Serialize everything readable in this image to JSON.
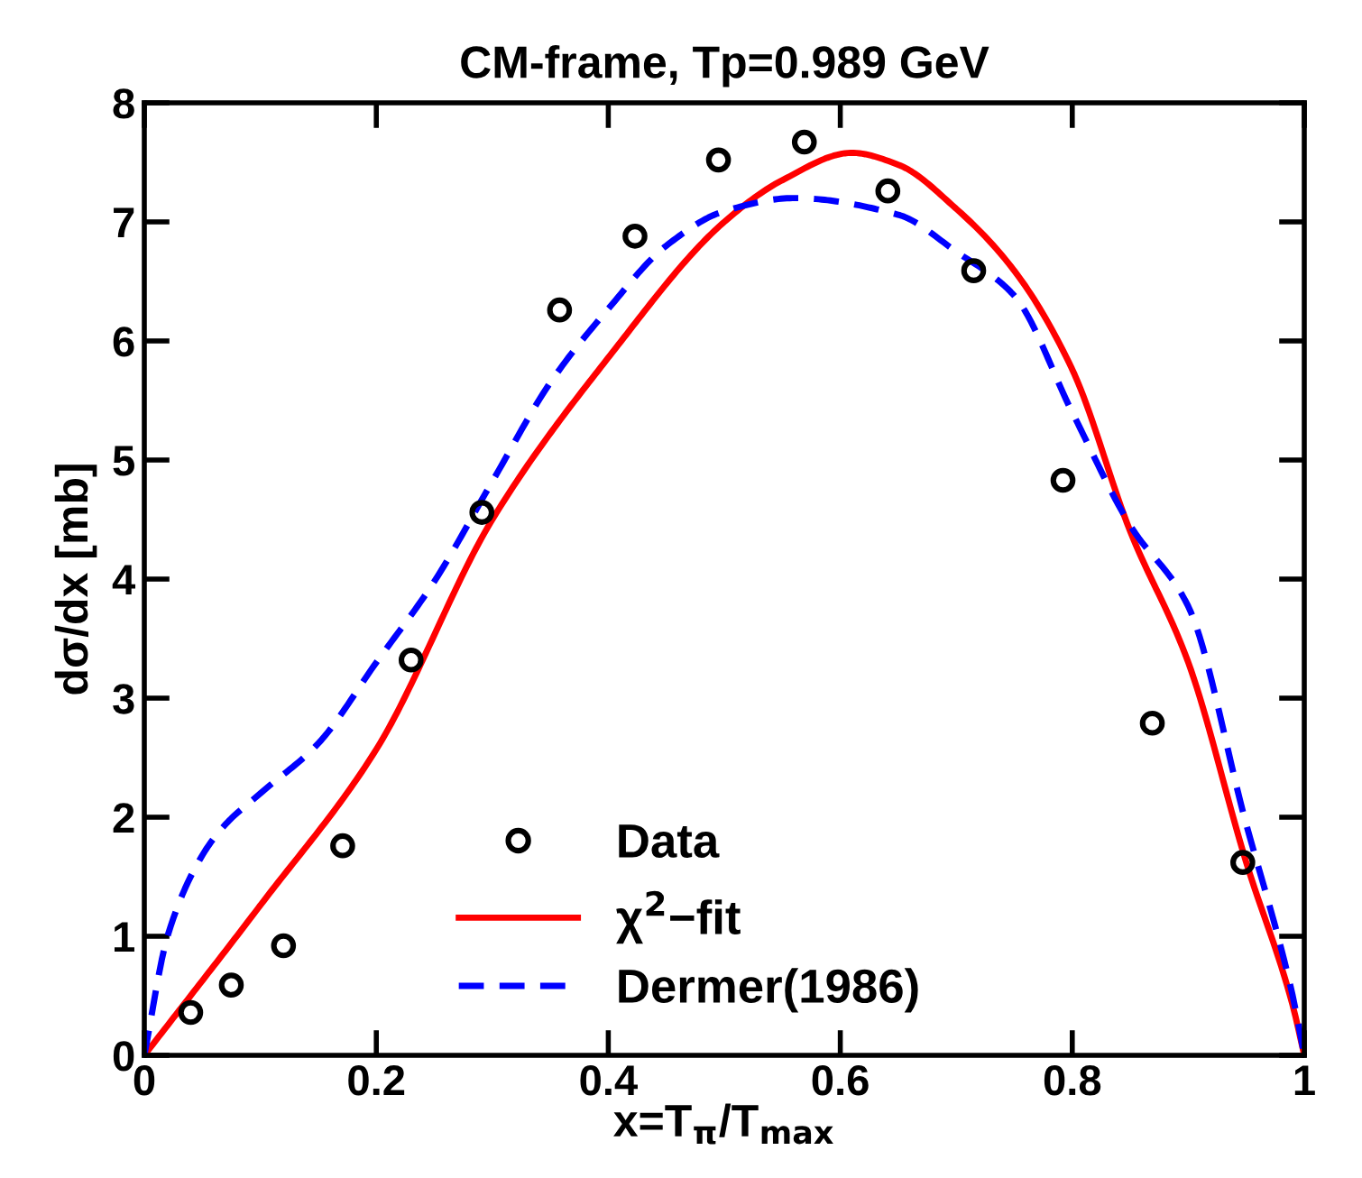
{
  "chart_data": {
    "type": "line",
    "title": "CM-frame, Tp=0.989 GeV",
    "xlabel": "x=T$_{π}$/T$_{max}$",
    "ylabel": "dσ/dx [mb]",
    "xlim": [
      0,
      1
    ],
    "xticks": [
      0,
      0.2,
      0.4,
      0.6,
      0.8,
      1
    ],
    "ylim": [
      0,
      8
    ],
    "yticks": [
      0,
      1,
      2,
      3,
      4,
      5,
      6,
      7,
      8
    ],
    "grid": false,
    "legend": "bottom",
    "series": [
      {
        "name": "Data",
        "type": "scatter",
        "marker": "circle",
        "color": "#000000",
        "x": [
          0.04,
          0.075,
          0.12,
          0.171,
          0.23,
          0.291,
          0.358,
          0.423,
          0.495,
          0.569,
          0.641,
          0.715,
          0.792,
          0.869,
          0.947
        ],
        "values": [
          0.36,
          0.59,
          0.92,
          1.76,
          3.32,
          4.56,
          6.26,
          6.88,
          7.52,
          7.67,
          7.26,
          6.59,
          4.83,
          2.79,
          1.62
        ]
      },
      {
        "name": "χ$^{2}$−fit",
        "line_style": "solid",
        "color": "#ff0000",
        "x": [
          0,
          0.1,
          0.2,
          0.3,
          0.4,
          0.5,
          0.55,
          0.61,
          0.65,
          0.7,
          0.75,
          0.8,
          0.85,
          0.9,
          0.95,
          0.99,
          1.0
        ],
        "values": [
          0,
          1.26,
          2.57,
          4.5,
          5.86,
          7.0,
          7.35,
          7.58,
          7.48,
          7.11,
          6.59,
          5.76,
          4.4,
          3.3,
          1.62,
          0.42,
          0
        ]
      },
      {
        "name": "Dermer(1986)",
        "line_style": "dashed",
        "color": "#0000ff",
        "x": [
          0,
          0.02,
          0.05,
          0.07,
          0.1,
          0.15,
          0.2,
          0.25,
          0.3,
          0.35,
          0.4,
          0.45,
          0.5,
          0.56,
          0.65,
          0.7,
          0.75,
          0.8,
          0.85,
          0.9,
          0.95,
          0.98,
          0.99,
          1.0
        ],
        "values": [
          0,
          1.0,
          1.68,
          1.94,
          2.2,
          2.62,
          3.3,
          3.98,
          4.82,
          5.65,
          6.27,
          6.8,
          7.09,
          7.2,
          7.06,
          6.75,
          6.38,
          5.4,
          4.45,
          3.77,
          1.94,
          0.9,
          0.5,
          0
        ]
      }
    ]
  }
}
